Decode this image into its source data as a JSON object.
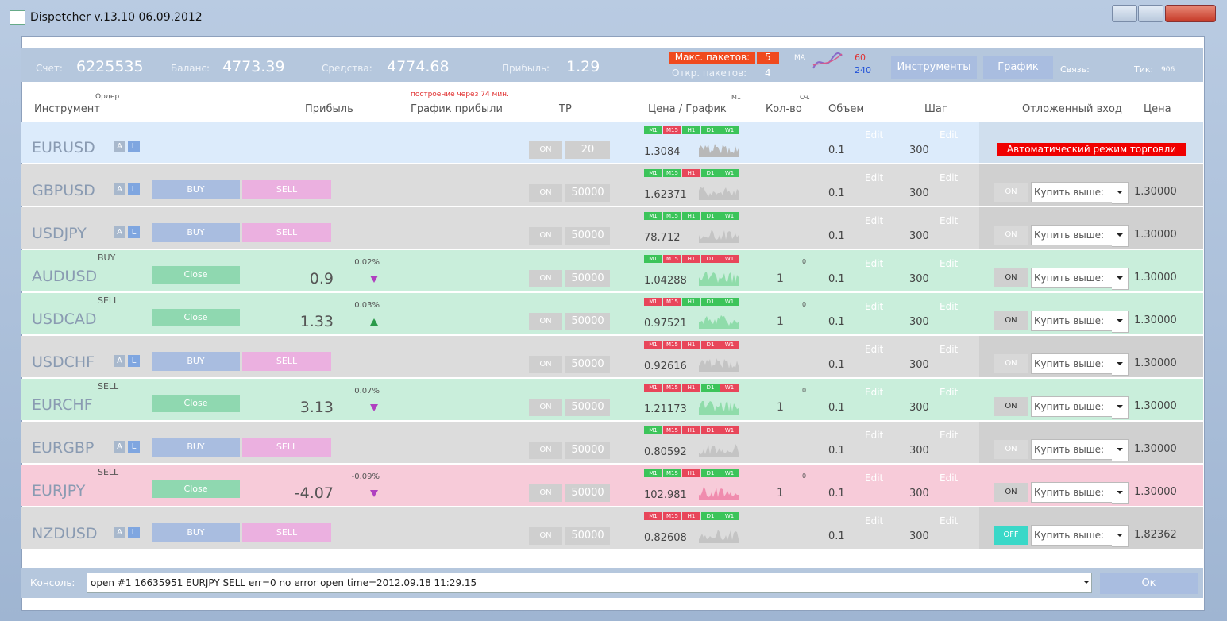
{
  "window": {
    "title": "Dispetcher v.13.10  06.09.2012"
  },
  "header": {
    "account_label": "Счет:",
    "account": "6225535",
    "balance_label": "Баланс:",
    "balance": "4773.39",
    "equity_label": "Средства:",
    "equity": "4774.68",
    "profit_label": "Прибыль:",
    "profit": "1.29",
    "max_packets_label": "Макс. пакетов:",
    "max_packets": "5",
    "open_packets_label": "Откр. пакетов:",
    "open_packets": "4",
    "ma_label": "MA",
    "ma_fast": "60",
    "ma_slow": "240",
    "tools_button": "Инструменты",
    "chart_button": "График",
    "link_label": "Связь:",
    "tick_label": "Тик:",
    "tick": "906"
  },
  "columns": {
    "order": "Ордер",
    "instrument": "Инструмент",
    "profit": "Прибыль",
    "build_note": "построение через 74 мин.",
    "profit_chart": "График прибыли",
    "tp": "TP",
    "price_chart": "Цена  /  График",
    "timeframe": "M1",
    "count_note": "Сч.",
    "count": "Кол-во",
    "volume": "Объем",
    "step": "Шаг",
    "pending": "Отложенный вход",
    "pending_price": "Цена"
  },
  "labels": {
    "a": "A",
    "l": "L",
    "buy": "BUY",
    "sell": "SELL",
    "close": "Close",
    "edit": "Edit",
    "on": "ON",
    "buy_above": "Купить выше:",
    "timeframes": [
      "M1",
      "M15",
      "H1",
      "D1",
      "W1"
    ]
  },
  "rows": [
    {
      "instrument": "EURUSD",
      "color": "#dcebfb",
      "tp": "20",
      "price": "1.3084",
      "volume": "0.1",
      "step": "300",
      "banner": "Автоматический режим торговли",
      "tf_colors": [
        "#3cc45a",
        "#e8465a",
        "#3cc45a",
        "#3cc45a",
        "#3cc45a"
      ],
      "chart_color": "#b8b8b8"
    },
    {
      "instrument": "GBPUSD",
      "color": "#dcdcdc",
      "tp": "50000",
      "price": "1.62371",
      "volume": "0.1",
      "step": "300",
      "pending_switch": "ON",
      "pending_price": "1.30000",
      "tf_colors": [
        "#3cc45a",
        "#3cc45a",
        "#e8465a",
        "#3cc45a",
        "#3cc45a"
      ],
      "chart_color": "#c4c4c4"
    },
    {
      "instrument": "USDJPY",
      "color": "#dcdcdc",
      "tp": "50000",
      "price": "78.712",
      "volume": "0.1",
      "step": "300",
      "pending_switch": "ON",
      "pending_price": "1.30000",
      "tf_colors": [
        "#3cc45a",
        "#3cc45a",
        "#3cc45a",
        "#3cc45a",
        "#3cc45a"
      ],
      "chart_color": "#c4c4c4"
    },
    {
      "instrument": "AUDUSD",
      "color": "#c9eedb",
      "order": "BUY",
      "profit": "0.9",
      "profit_pct": "0.02%",
      "trend": "down",
      "count_small": "0",
      "count": "1",
      "tp": "50000",
      "price": "1.04288",
      "volume": "0.1",
      "step": "300",
      "pending_switch": "ON",
      "pending_price": "1.30000",
      "tf_colors": [
        "#3cc45a",
        "#e8465a",
        "#e8465a",
        "#e8465a",
        "#e8465a"
      ],
      "chart_color": "#8fdcaa"
    },
    {
      "instrument": "USDCAD",
      "color": "#c9eedb",
      "order": "SELL",
      "profit": "1.33",
      "profit_pct": "0.03%",
      "trend": "up",
      "count_small": "0",
      "count": "1",
      "tp": "50000",
      "price": "0.97521",
      "volume": "0.1",
      "step": "300",
      "pending_switch": "ON",
      "pending_price": "1.30000",
      "tf_colors": [
        "#e8465a",
        "#e8465a",
        "#3cc45a",
        "#3cc45a",
        "#3cc45a"
      ],
      "chart_color": "#8fdcaa"
    },
    {
      "instrument": "USDCHF",
      "color": "#dcdcdc",
      "tp": "50000",
      "price": "0.92616",
      "volume": "0.1",
      "step": "300",
      "pending_switch": "ON",
      "pending_price": "1.30000",
      "tf_colors": [
        "#e8465a",
        "#e8465a",
        "#e8465a",
        "#e8465a",
        "#e8465a"
      ],
      "chart_color": "#c4c4c4"
    },
    {
      "instrument": "EURCHF",
      "color": "#c9eedb",
      "order": "SELL",
      "profit": "3.13",
      "profit_pct": "0.07%",
      "trend": "down",
      "count_small": "0",
      "count": "1",
      "tp": "50000",
      "price": "1.21173",
      "volume": "0.1",
      "step": "300",
      "pending_switch": "ON",
      "pending_price": "1.30000",
      "tf_colors": [
        "#e8465a",
        "#e8465a",
        "#e8465a",
        "#3cc45a",
        "#e8465a"
      ],
      "chart_color": "#8fdcaa"
    },
    {
      "instrument": "EURGBP",
      "color": "#dcdcdc",
      "tp": "50000",
      "price": "0.80592",
      "volume": "0.1",
      "step": "300",
      "pending_switch": "ON",
      "pending_price": "1.30000",
      "tf_colors": [
        "#3cc45a",
        "#e8465a",
        "#e8465a",
        "#e8465a",
        "#e8465a"
      ],
      "chart_color": "#c4c4c4"
    },
    {
      "instrument": "EURJPY",
      "color": "#f7cbd9",
      "order": "SELL",
      "profit": "-4.07",
      "profit_pct": "-0.09%",
      "trend": "down",
      "count_small": "0",
      "count": "1",
      "tp": "50000",
      "price": "102.981",
      "volume": "0.1",
      "step": "300",
      "pending_switch": "ON",
      "pending_price": "1.30000",
      "tf_colors": [
        "#3cc45a",
        "#3cc45a",
        "#e8465a",
        "#3cc45a",
        "#3cc45a"
      ],
      "chart_color": "#f08cae"
    },
    {
      "instrument": "NZDUSD",
      "color": "#dcdcdc",
      "tp": "50000",
      "price": "0.82608",
      "volume": "0.1",
      "step": "300",
      "pending_switch": "OFF",
      "pending_price": "1.82362",
      "tf_colors": [
        "#e8465a",
        "#e8465a",
        "#e8465a",
        "#3cc45a",
        "#3cc45a"
      ],
      "chart_color": "#c4c4c4"
    }
  ],
  "console": {
    "label": "Консоль:",
    "text": "open #1  16635951  EURJPY  SELL  err=0  no error  open time=2012.09.18 11:29.15",
    "ok": "Ок"
  }
}
